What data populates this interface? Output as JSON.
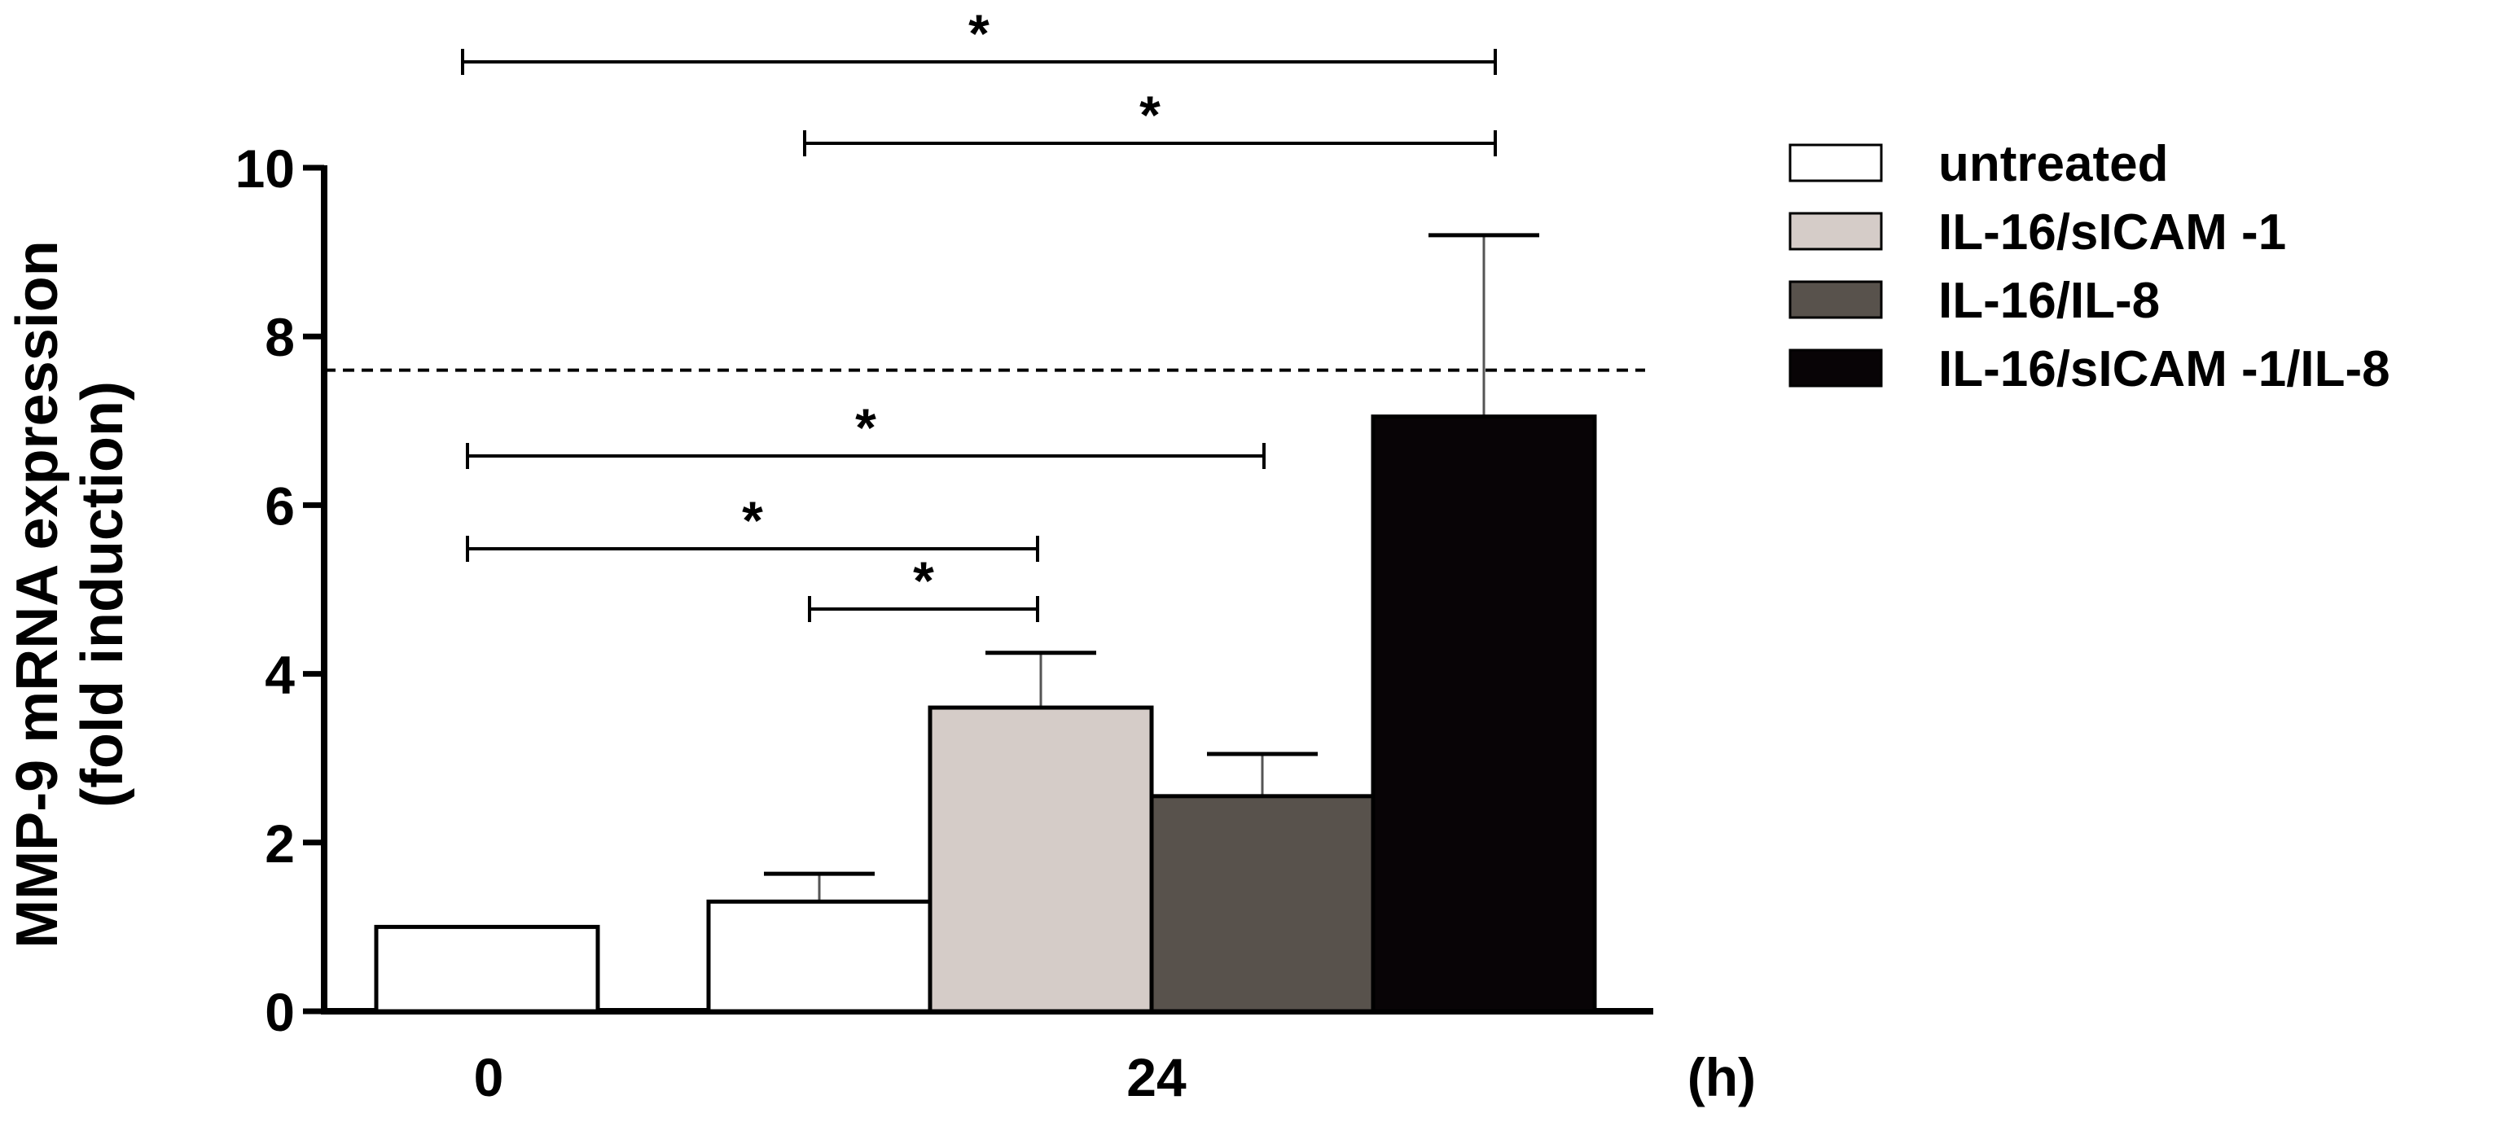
{
  "chart_data": {
    "type": "bar",
    "ylabel_line1": "MMP-9 mRNA expression",
    "ylabel_line2": "(fold induction)",
    "x_unit": "(h)",
    "ylim": [
      0,
      10
    ],
    "yticks": [
      "0",
      "2",
      "4",
      "6",
      "8",
      "10"
    ],
    "categories": [
      "0",
      "24"
    ],
    "reference_line": 7.6,
    "series": [
      {
        "name": "untreated",
        "color": "#ffffff",
        "values": [
          1.0,
          1.3
        ],
        "errors": [
          null,
          0.33
        ]
      },
      {
        "name": "IL-16/sICAM -1",
        "color": "#d5ccc8",
        "values": [
          null,
          3.6
        ],
        "errors": [
          null,
          0.65
        ]
      },
      {
        "name": "IL-16/IL-8",
        "color": "#58524c",
        "values": [
          null,
          2.55
        ],
        "errors": [
          null,
          0.5
        ]
      },
      {
        "name": "IL-16/sICAM -1/IL-8",
        "color": "#080406",
        "values": [
          null,
          7.05
        ],
        "errors": [
          null,
          2.15
        ]
      }
    ],
    "significance": [
      {
        "label": "*",
        "from": "0 untreated",
        "to": "24 IL-16/sICAM -1/IL-8"
      },
      {
        "label": "*",
        "from": "24 untreated",
        "to": "24 IL-16/sICAM -1/IL-8"
      },
      {
        "label": "*",
        "from": "0 untreated",
        "to": "24 IL-16/IL-8"
      },
      {
        "label": "*",
        "from": "0 untreated",
        "to": "24 IL-16/sICAM -1"
      },
      {
        "label": "*",
        "from": "24 untreated",
        "to": "24 IL-16/sICAM -1"
      }
    ]
  }
}
